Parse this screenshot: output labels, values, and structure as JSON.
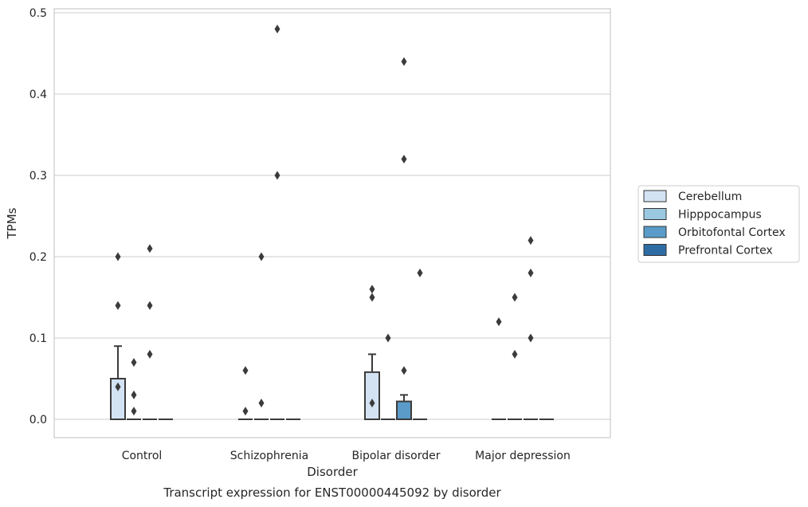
{
  "caption": "Transcript expression for ENST00000445092 by disorder",
  "chart_data": {
    "type": "box",
    "xlabel": "Disorder",
    "ylabel": "TPMs",
    "ylim": [
      -0.023,
      0.505
    ],
    "yticks": [
      0.0,
      0.1,
      0.2,
      0.3,
      0.4,
      0.5
    ],
    "ytick_labels": [
      "0.0",
      "0.1",
      "0.2",
      "0.3",
      "0.4",
      "0.5"
    ],
    "grid": "horizontal",
    "legend_position": "right",
    "categories": [
      "Control",
      "Schizophrenia",
      "Bipolar disorder",
      "Major depression"
    ],
    "series": [
      {
        "name": "Cerebellum",
        "color": "#d3e3f3",
        "boxes": [
          {
            "q1": 0.0,
            "median": 0.0,
            "q3": 0.05,
            "whisker_low": 0.0,
            "whisker_high": 0.09,
            "outliers": [
              0.14,
              0.2,
              0.04
            ]
          },
          {
            "q1": 0.0,
            "median": 0.0,
            "q3": 0.0,
            "whisker_low": 0.0,
            "whisker_high": 0.0,
            "outliers": [
              0.01,
              0.06
            ]
          },
          {
            "q1": 0.0,
            "median": 0.0,
            "q3": 0.058,
            "whisker_low": 0.0,
            "whisker_high": 0.08,
            "outliers": [
              0.15,
              0.16,
              0.02
            ]
          },
          {
            "q1": 0.0,
            "median": 0.0,
            "q3": 0.0,
            "whisker_low": 0.0,
            "whisker_high": 0.0,
            "outliers": [
              0.12
            ]
          }
        ]
      },
      {
        "name": "Hipppocampus",
        "color": "#9ac8e0",
        "boxes": [
          {
            "q1": 0.0,
            "median": 0.0,
            "q3": 0.0,
            "whisker_low": 0.0,
            "whisker_high": 0.0,
            "outliers": [
              0.07,
              0.03,
              0.01
            ]
          },
          {
            "q1": 0.0,
            "median": 0.0,
            "q3": 0.0,
            "whisker_low": 0.0,
            "whisker_high": 0.0,
            "outliers": [
              0.2,
              0.02
            ]
          },
          {
            "q1": 0.0,
            "median": 0.0,
            "q3": 0.0,
            "whisker_low": 0.0,
            "whisker_high": 0.0,
            "outliers": [
              0.1
            ]
          },
          {
            "q1": 0.0,
            "median": 0.0,
            "q3": 0.0,
            "whisker_low": 0.0,
            "whisker_high": 0.0,
            "outliers": [
              0.15,
              0.08
            ]
          }
        ]
      },
      {
        "name": "Orbitofontal Cortex",
        "color": "#5a9bc9",
        "boxes": [
          {
            "q1": 0.0,
            "median": 0.0,
            "q3": 0.0,
            "whisker_low": 0.0,
            "whisker_high": 0.0,
            "outliers": [
              0.21,
              0.14,
              0.08
            ]
          },
          {
            "q1": 0.0,
            "median": 0.0,
            "q3": 0.0,
            "whisker_low": 0.0,
            "whisker_high": 0.0,
            "outliers": [
              0.48,
              0.3
            ]
          },
          {
            "q1": 0.0,
            "median": 0.0,
            "q3": 0.022,
            "whisker_low": 0.0,
            "whisker_high": 0.03,
            "outliers": [
              0.44,
              0.32,
              0.06
            ]
          },
          {
            "q1": 0.0,
            "median": 0.0,
            "q3": 0.0,
            "whisker_low": 0.0,
            "whisker_high": 0.0,
            "outliers": [
              0.22,
              0.18,
              0.1
            ]
          }
        ]
      },
      {
        "name": "Prefrontal Cortex",
        "color": "#2e6da4",
        "boxes": [
          {
            "q1": 0.0,
            "median": 0.0,
            "q3": 0.0,
            "whisker_low": 0.0,
            "whisker_high": 0.0,
            "outliers": []
          },
          {
            "q1": 0.0,
            "median": 0.0,
            "q3": 0.0,
            "whisker_low": 0.0,
            "whisker_high": 0.0,
            "outliers": []
          },
          {
            "q1": 0.0,
            "median": 0.0,
            "q3": 0.0,
            "whisker_low": 0.0,
            "whisker_high": 0.0,
            "outliers": [
              0.18
            ]
          },
          {
            "q1": 0.0,
            "median": 0.0,
            "q3": 0.0,
            "whisker_low": 0.0,
            "whisker_high": 0.0,
            "outliers": []
          }
        ]
      }
    ]
  }
}
